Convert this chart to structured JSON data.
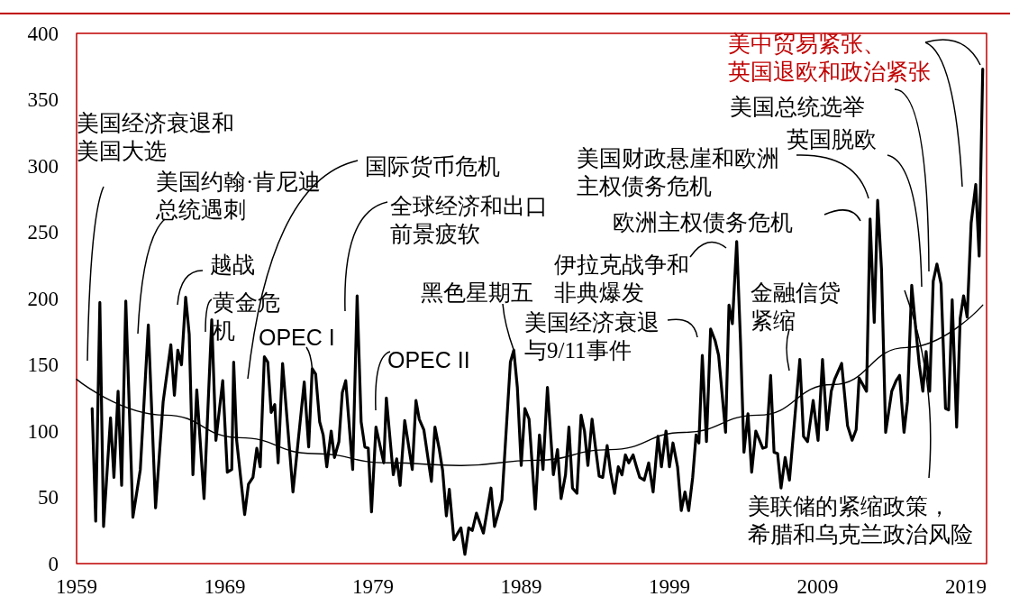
{
  "chart_data": {
    "type": "line",
    "xlim": [
      1959,
      2020.4
    ],
    "xticks": [
      1959,
      1969,
      1979,
      1989,
      1999,
      2009,
      2019
    ],
    "ylim": [
      0,
      400
    ],
    "yticks": [
      0,
      50,
      100,
      150,
      200,
      250,
      300,
      350,
      400
    ],
    "grid": false,
    "marker": "none",
    "line_style": "solid",
    "series": [
      {
        "color": "#000000",
        "x": [
          1960.05,
          1960.29,
          1960.57,
          1960.82,
          1961.29,
          1961.52,
          1961.8,
          1962.04,
          1962.32,
          1962.8,
          1963.3,
          1963.84,
          1964.33,
          1964.84,
          1965.36,
          1965.6,
          1965.83,
          1966.08,
          1966.36,
          1966.6,
          1966.85,
          1967.11,
          1967.6,
          1968.12,
          1968.4,
          1968.86,
          1969.17,
          1969.47,
          1969.6,
          1969.8,
          1970.34,
          1970.6,
          1970.9,
          1971.16,
          1971.39,
          1971.67,
          1971.9,
          1972.13,
          1972.37,
          1972.6,
          1972.9,
          1973.6,
          1974.36,
          1974.66,
          1974.9,
          1975.13,
          1975.4,
          1975.64,
          1975.88,
          1976.18,
          1976.4,
          1976.7,
          1976.93,
          1977.16,
          1977.63,
          1977.93,
          1978.2,
          1978.45,
          1978.68,
          1978.9,
          1979.2,
          1979.73,
          1979.9,
          1980.37,
          1980.6,
          1980.83,
          1981.14,
          1981.65,
          1981.9,
          1982.12,
          1982.43,
          1982.94,
          1983.18,
          1983.46,
          1983.7,
          1983.95,
          1984.15,
          1984.46,
          1984.93,
          1985.2,
          1985.46,
          1985.7,
          1985.98,
          1986.45,
          1986.96,
          1987.2,
          1987.7,
          1988.27,
          1988.5,
          1988.74,
          1989.0,
          1989.25,
          1989.53,
          1989.95,
          1990.23,
          1990.47,
          1990.77,
          1991.17,
          1991.45,
          1991.69,
          1991.99,
          1992.22,
          1992.46,
          1992.76,
          1993.04,
          1993.27,
          1993.5,
          1993.78,
          1994.02,
          1994.26,
          1994.5,
          1994.8,
          1995.03,
          1995.3,
          1995.55,
          1995.8,
          1996.03,
          1996.26,
          1996.55,
          1996.78,
          1997.0,
          1997.3,
          1997.6,
          1997.9,
          1998.23,
          1998.46,
          1998.77,
          1999.0,
          1999.24,
          1999.55,
          1999.8,
          2000.05,
          2000.3,
          2000.57,
          2000.8,
          2000.99,
          2001.22,
          2001.5,
          2001.78,
          2002.09,
          2002.32,
          2002.79,
          2003.02,
          2003.25,
          2003.54,
          2003.8,
          2004.03,
          2004.3,
          2004.55,
          2004.83,
          2005.3,
          2005.53,
          2005.83,
          2006.06,
          2006.3,
          2006.53,
          2006.81,
          2007.1,
          2007.8,
          2008.05,
          2008.32,
          2008.7,
          2009.03,
          2009.33,
          2009.64,
          2009.92,
          2010.15,
          2010.62,
          2011.02,
          2011.33,
          2011.6,
          2011.8,
          2012.3,
          2012.54,
          2012.82,
          2013.05,
          2013.31,
          2013.59,
          2014.0,
          2014.3,
          2014.53,
          2014.83,
          2015.06,
          2015.35,
          2015.58,
          2015.86,
          2016.1,
          2016.32,
          2016.56,
          2016.8,
          2017.05,
          2017.33,
          2017.63,
          2017.84,
          2018.08,
          2018.38,
          2018.62,
          2018.85,
          2019.09,
          2019.36,
          2019.67,
          2019.9,
          2020.14
        ],
        "values": [
          117,
          32,
          197,
          28,
          110,
          65,
          130,
          59,
          198,
          35,
          71,
          180,
          42,
          122,
          165,
          127,
          161,
          150,
          201,
          173,
          67,
          131,
          49,
          184,
          93,
          138,
          69,
          71,
          152,
          93,
          37,
          60,
          65,
          87,
          73,
          156,
          152,
          114,
          120,
          76,
          151,
          54,
          137,
          88,
          147,
          143,
          107,
          97,
          73,
          100,
          80,
          92,
          129,
          138,
          71,
          202,
          107,
          88,
          87,
          39,
          103,
          76,
          125,
          67,
          79,
          59,
          108,
          71,
          123,
          109,
          101,
          62,
          103,
          87,
          70,
          36,
          56,
          18,
          27,
          7,
          27,
          25,
          38,
          23,
          57,
          28,
          48,
          152,
          161,
          133,
          74,
          117,
          109,
          41,
          97,
          71,
          133,
          67,
          86,
          49,
          67,
          103,
          57,
          53,
          112,
          100,
          74,
          109,
          87,
          66,
          65,
          89,
          69,
          53,
          73,
          67,
          82,
          76,
          82,
          73,
          65,
          63,
          76,
          54,
          96,
          73,
          100,
          73,
          91,
          73,
          40,
          54,
          40,
          65,
          97,
          91,
          157,
          92,
          177,
          168,
          157,
          99,
          195,
          181,
          243,
          167,
          84,
          113,
          69,
          100,
          87,
          88,
          142,
          84,
          83,
          57,
          80,
          63,
          154,
          96,
          92,
          123,
          93,
          154,
          101,
          130,
          139,
          151,
          104,
          93,
          101,
          140,
          130,
          260,
          182,
          274,
          222,
          99,
          130,
          138,
          142,
          99,
          122,
          210,
          182,
          150,
          130,
          160,
          130,
          213,
          226,
          211,
          117,
          116,
          199,
          103,
          185,
          202,
          186,
          257,
          286,
          232,
          373
        ]
      },
      {
        "type": "line",
        "color": "#000000",
        "x": [
          1959,
          1965,
          1970,
          1975,
          1980,
          1985,
          1990,
          1995,
          2000,
          2005,
          2010,
          2015,
          2020.14
        ],
        "values": [
          139,
          112,
          95,
          83,
          76,
          74,
          78,
          86,
          99,
          112,
          135,
          163,
          195
        ]
      }
    ],
    "annotations": [
      "美国经济衰退和美国大选",
      "美国约翰·肯尼迪总统遇刺",
      "越战",
      "黄金危机",
      "国际货币危机",
      {
        "text": "OPEC I",
        "x": 1974.9,
        "y": 147
      },
      "全球经济和出口前景疲软",
      "OPEC II",
      {
        "text": "黑色星期五",
        "x": 1988.5,
        "y": 161
      },
      "美国经济衰退与9/11事件",
      "伊拉克战争和非典爆发",
      "欧洲主权债务危机",
      "美国财政悬崖和欧洲主权债务危机",
      "美国总统选举",
      "英国脱欧",
      "美中贸易紧张、英国退欧和政治紧张",
      "金融信贷紧缩",
      "美联储的紧缩政策，希腊和乌克兰政治风险"
    ]
  }
}
